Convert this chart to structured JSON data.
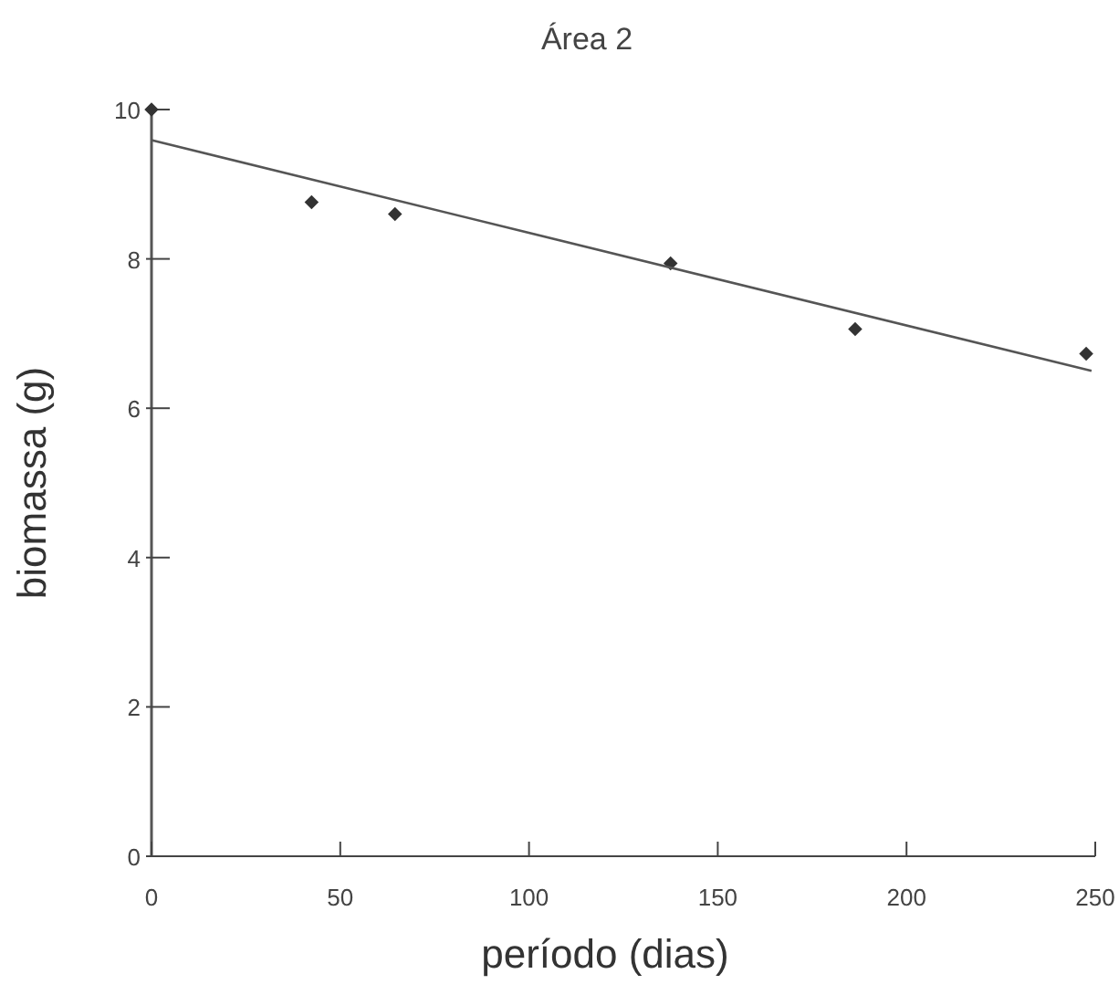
{
  "chart_data": {
    "type": "scatter",
    "title": "Área 2",
    "xlabel": "período (dias)",
    "ylabel": "biomassa (g)",
    "xlim": [
      0,
      250
    ],
    "xticks": [
      0,
      50,
      100,
      150,
      200,
      250
    ],
    "ylim": [
      0,
      10
    ],
    "yticks": [
      0,
      2,
      4,
      6,
      8,
      10
    ],
    "grid": false,
    "series": [
      {
        "marker": "diamond",
        "color": "#333333",
        "x": [
          0,
          42.4,
          64.5,
          137.5,
          186.4,
          247.6
        ],
        "values": [
          10,
          8.76,
          8.6,
          7.94,
          7.06,
          6.73
        ]
      },
      {
        "type": "line",
        "color": "#555555",
        "x": [
          0,
          249
        ],
        "values": [
          9.59,
          6.5
        ]
      }
    ]
  }
}
